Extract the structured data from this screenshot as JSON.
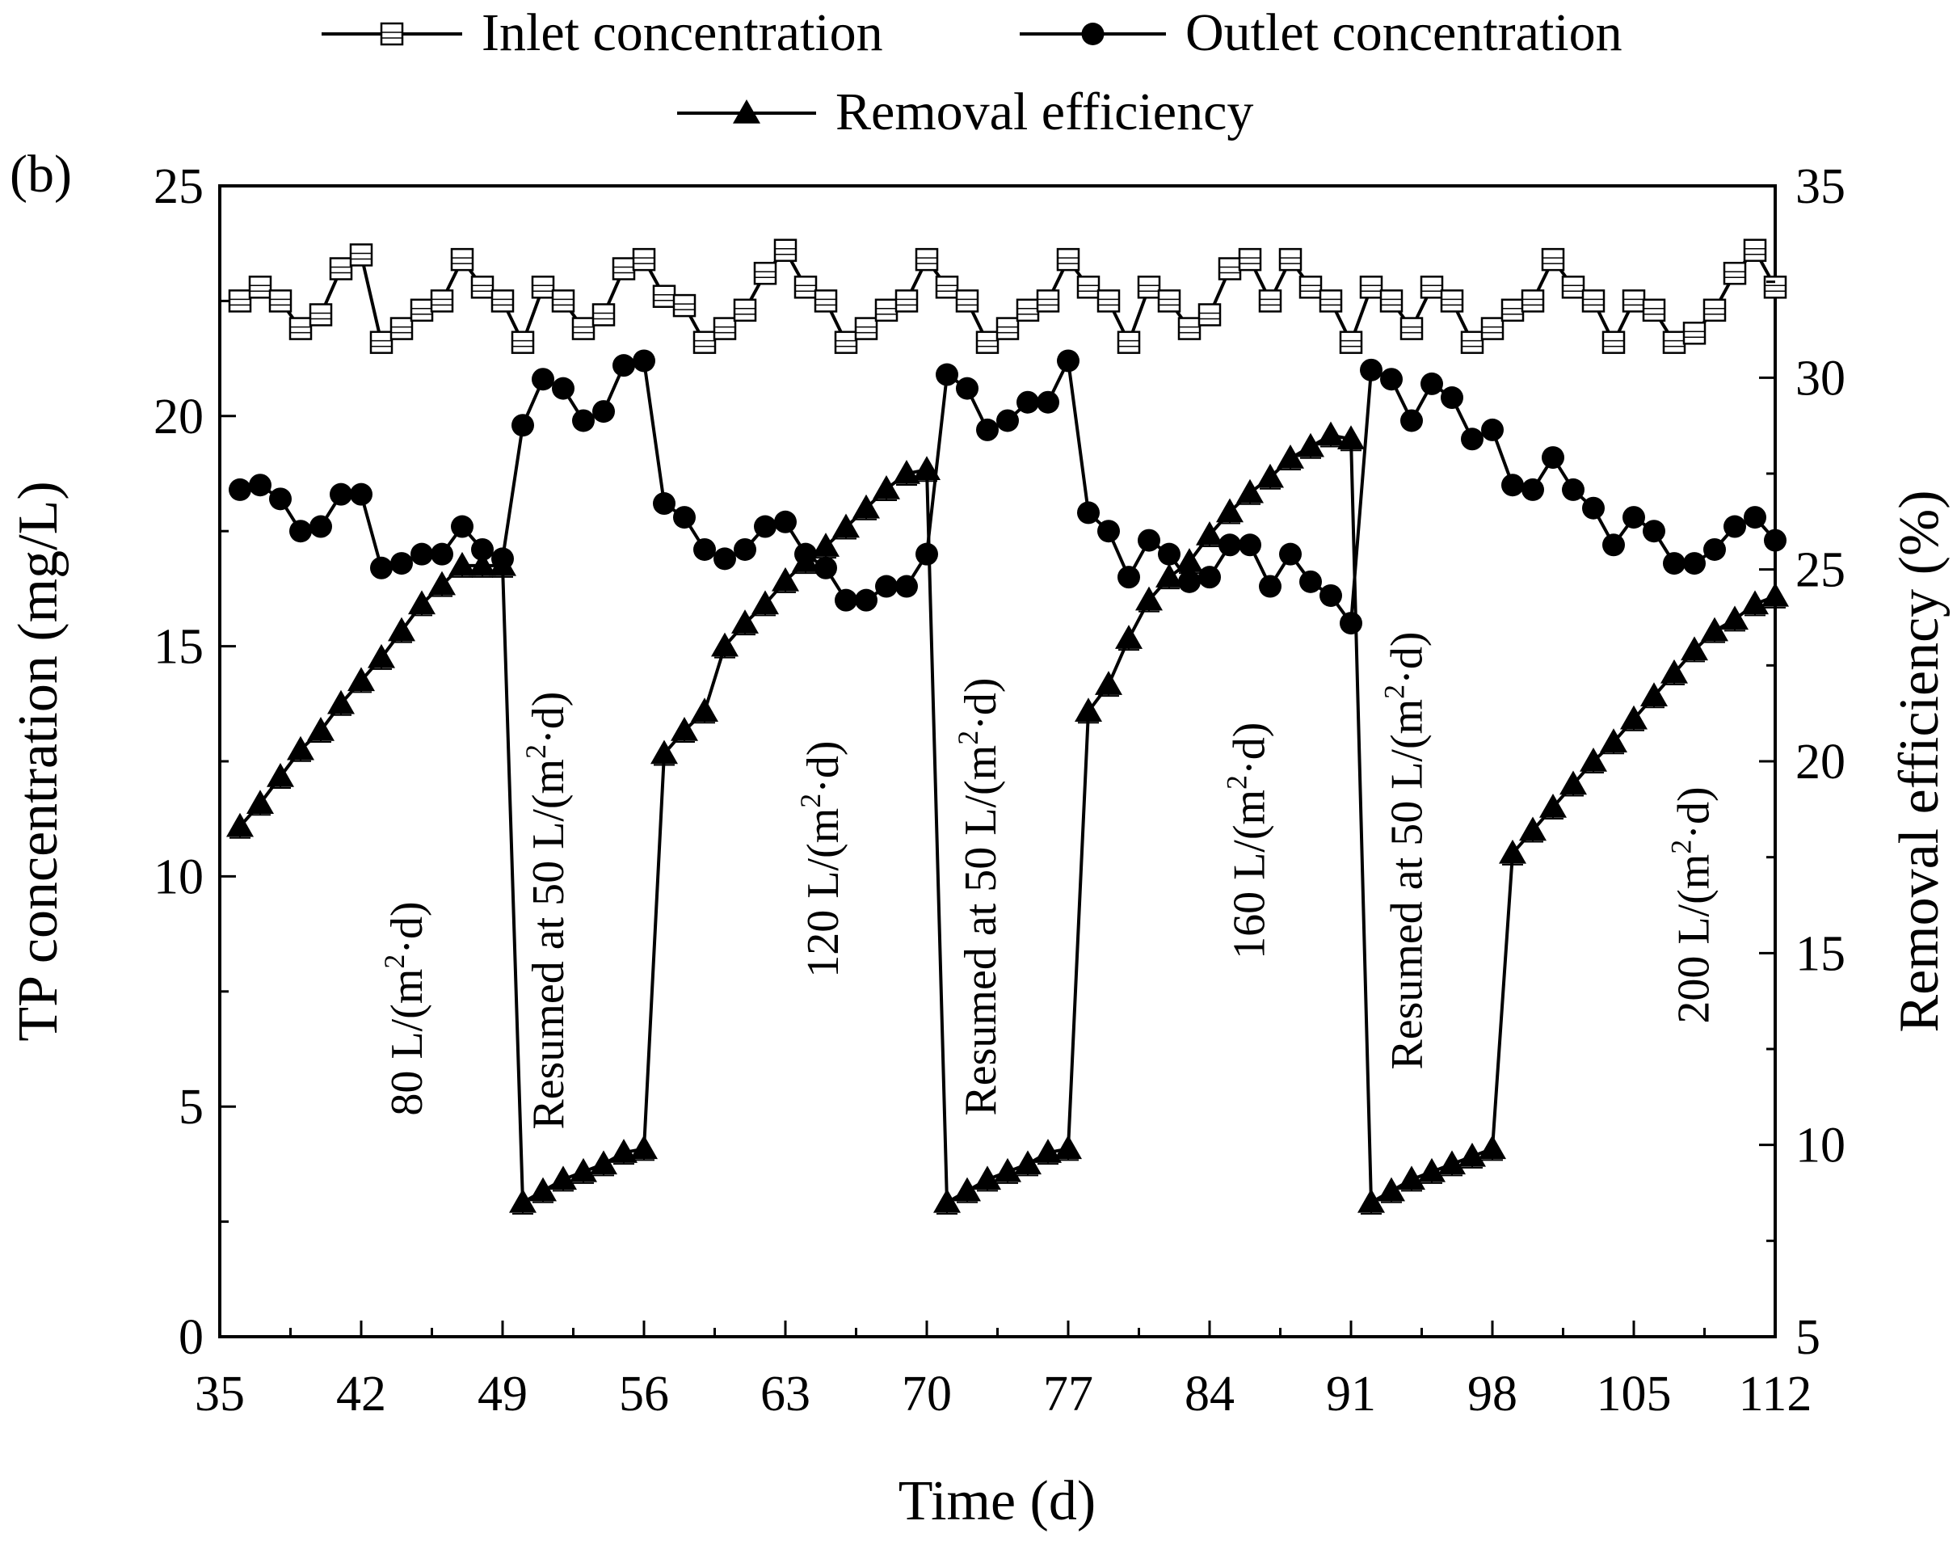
{
  "chart_data": {
    "type": "line",
    "panel_label": "(b)",
    "xlabel": "Time (d)",
    "ylabel_left": "TP concentration (mg/L)",
    "ylabel_right": "Removal efficiency (%)",
    "xlim": [
      35,
      112
    ],
    "ylim_left": [
      0,
      25
    ],
    "ylim_right": [
      5,
      35
    ],
    "x_ticks": [
      35,
      42,
      49,
      56,
      63,
      70,
      77,
      84,
      91,
      98,
      105,
      112
    ],
    "x_tick_labels": [
      "35",
      "42",
      "49",
      "56",
      "63",
      "70",
      "77",
      "84",
      "91",
      "98",
      "105",
      "112"
    ],
    "y_left_ticks": [
      0,
      5,
      10,
      15,
      20,
      25
    ],
    "y_left_tick_labels": [
      "0",
      "5",
      "10",
      "15",
      "20",
      "25"
    ],
    "y_right_ticks": [
      5,
      10,
      15,
      20,
      25,
      30,
      35
    ],
    "y_right_tick_labels": [
      "5",
      "10",
      "15",
      "20",
      "25",
      "30",
      "35"
    ],
    "grid": false,
    "legend": [
      {
        "name": "Inlet concentration",
        "marker": "open-square"
      },
      {
        "name": "Outlet concentration",
        "marker": "filled-circle"
      },
      {
        "name": "Removal efficiency",
        "marker": "filled-triangle"
      }
    ],
    "series": [
      {
        "name": "Inlet concentration",
        "axis": "left",
        "marker": "open-square",
        "x": [
          36,
          37,
          38,
          39,
          40,
          41,
          42,
          43,
          44,
          45,
          46,
          47,
          48,
          49,
          50,
          51,
          52,
          53,
          54,
          55,
          56,
          57,
          58,
          59,
          60,
          61,
          62,
          63,
          64,
          65,
          66,
          67,
          68,
          69,
          70,
          71,
          72,
          73,
          74,
          75,
          76,
          77,
          78,
          79,
          80,
          81,
          82,
          83,
          84,
          85,
          86,
          87,
          88,
          89,
          90,
          91,
          92,
          93,
          94,
          95,
          96,
          97,
          98,
          99,
          100,
          101,
          102,
          103,
          104,
          105,
          106,
          107,
          108,
          109,
          110,
          111,
          112
        ],
        "values": [
          22.5,
          22.8,
          22.5,
          21.9,
          22.2,
          23.2,
          23.5,
          21.6,
          21.9,
          22.3,
          22.5,
          23.4,
          22.8,
          22.5,
          21.6,
          22.8,
          22.5,
          21.9,
          22.2,
          23.2,
          23.4,
          22.6,
          22.4,
          21.6,
          21.9,
          22.3,
          23.1,
          23.6,
          22.8,
          22.5,
          21.6,
          21.9,
          22.3,
          22.5,
          23.4,
          22.8,
          22.5,
          21.6,
          21.9,
          22.3,
          22.5,
          23.4,
          22.8,
          22.5,
          21.6,
          22.8,
          22.5,
          21.9,
          22.2,
          23.2,
          23.4,
          22.5,
          23.4,
          22.8,
          22.5,
          21.6,
          22.8,
          22.5,
          21.9,
          22.8,
          22.5,
          21.6,
          21.9,
          22.3,
          22.5,
          23.4,
          22.8,
          22.5,
          21.6,
          22.5,
          22.3,
          21.6,
          21.8,
          22.3,
          23.1,
          23.6,
          22.8
        ]
      },
      {
        "name": "Outlet concentration",
        "axis": "left",
        "marker": "filled-circle",
        "x": [
          36,
          37,
          38,
          39,
          40,
          41,
          42,
          43,
          44,
          45,
          46,
          47,
          48,
          49,
          50,
          51,
          52,
          53,
          54,
          55,
          56,
          57,
          58,
          59,
          60,
          61,
          62,
          63,
          64,
          65,
          66,
          67,
          68,
          69,
          70,
          71,
          72,
          73,
          74,
          75,
          76,
          77,
          78,
          79,
          80,
          81,
          82,
          83,
          84,
          85,
          86,
          87,
          88,
          89,
          90,
          91,
          92,
          93,
          94,
          95,
          96,
          97,
          98,
          99,
          100,
          101,
          102,
          103,
          104,
          105,
          106,
          107,
          108,
          109,
          110,
          111,
          112
        ],
        "values": [
          18.4,
          18.5,
          18.2,
          17.5,
          17.6,
          18.3,
          18.3,
          16.7,
          16.8,
          17.0,
          17.0,
          17.6,
          17.1,
          16.9,
          19.8,
          20.8,
          20.6,
          19.9,
          20.1,
          21.1,
          21.2,
          18.1,
          17.8,
          17.1,
          16.9,
          17.1,
          17.6,
          17.7,
          17.0,
          16.7,
          16.0,
          16.0,
          16.3,
          16.3,
          17.0,
          20.9,
          20.6,
          19.7,
          19.9,
          20.3,
          20.3,
          21.2,
          17.9,
          17.5,
          16.5,
          17.3,
          17.0,
          16.4,
          16.5,
          17.2,
          17.2,
          16.3,
          17.0,
          16.4,
          16.1,
          15.5,
          21.0,
          20.8,
          19.9,
          20.7,
          20.4,
          19.5,
          19.7,
          18.5,
          18.4,
          19.1,
          18.4,
          18.0,
          17.2,
          17.8,
          17.5,
          16.8,
          16.8,
          17.1,
          17.6,
          17.8,
          17.3
        ]
      },
      {
        "name": "Removal efficiency",
        "axis": "right",
        "marker": "filled-triangle",
        "x": [
          36,
          37,
          38,
          39,
          40,
          41,
          42,
          43,
          44,
          45,
          46,
          47,
          48,
          49,
          50,
          51,
          52,
          53,
          54,
          55,
          56,
          57,
          58,
          59,
          60,
          61,
          62,
          63,
          64,
          65,
          66,
          67,
          68,
          69,
          70,
          71,
          72,
          73,
          74,
          75,
          76,
          77,
          78,
          79,
          80,
          81,
          82,
          83,
          84,
          85,
          86,
          87,
          88,
          89,
          90,
          91,
          92,
          93,
          94,
          95,
          96,
          97,
          98,
          99,
          100,
          101,
          102,
          103,
          104,
          105,
          106,
          107,
          108,
          109,
          110,
          111,
          112
        ],
        "values": [
          18.3,
          18.9,
          19.6,
          20.3,
          20.8,
          21.5,
          22.1,
          22.7,
          23.4,
          24.1,
          24.6,
          25.1,
          25.1,
          25.1,
          8.5,
          8.8,
          9.1,
          9.3,
          9.5,
          9.8,
          9.9,
          20.2,
          20.8,
          21.3,
          23.0,
          23.6,
          24.1,
          24.7,
          25.2,
          25.6,
          26.1,
          26.6,
          27.1,
          27.5,
          27.6,
          8.5,
          8.8,
          9.1,
          9.3,
          9.5,
          9.8,
          9.9,
          21.3,
          22.0,
          23.2,
          24.2,
          24.8,
          25.2,
          25.9,
          26.5,
          27.0,
          27.4,
          27.9,
          28.2,
          28.5,
          28.4,
          8.5,
          8.8,
          9.1,
          9.3,
          9.5,
          9.7,
          9.9,
          17.6,
          18.2,
          18.8,
          19.4,
          20.0,
          20.5,
          21.1,
          21.7,
          22.3,
          22.9,
          23.4,
          23.7,
          24.1,
          24.3
        ]
      }
    ],
    "annotations": [
      {
        "text": "80 L/(m",
        "sup": "2",
        "text_after": "·d)",
        "x": 45.0,
        "y_left": 4.8
      },
      {
        "text": "Resumed at 50 L/(m",
        "sup": "2",
        "text_after": "·d)",
        "x": 52.0,
        "y_left": 4.5
      },
      {
        "text": "120 L/(m",
        "sup": "2",
        "text_after": "·d)",
        "x": 65.6,
        "y_left": 7.8
      },
      {
        "text": "Resumed at 50 L/(m",
        "sup": "2",
        "text_after": "·d)",
        "x": 73.4,
        "y_left": 4.8
      },
      {
        "text": "160 L/(m",
        "sup": "2",
        "text_after": "·d)",
        "x": 86.7,
        "y_left": 8.2
      },
      {
        "text": "Resumed at 50 L/(m",
        "sup": "2",
        "text_after": "·d)",
        "x": 94.5,
        "y_left": 5.8
      },
      {
        "text": "200 L/(m",
        "sup": "2",
        "text_after": "·d)",
        "x": 108.7,
        "y_left": 6.8
      }
    ]
  }
}
